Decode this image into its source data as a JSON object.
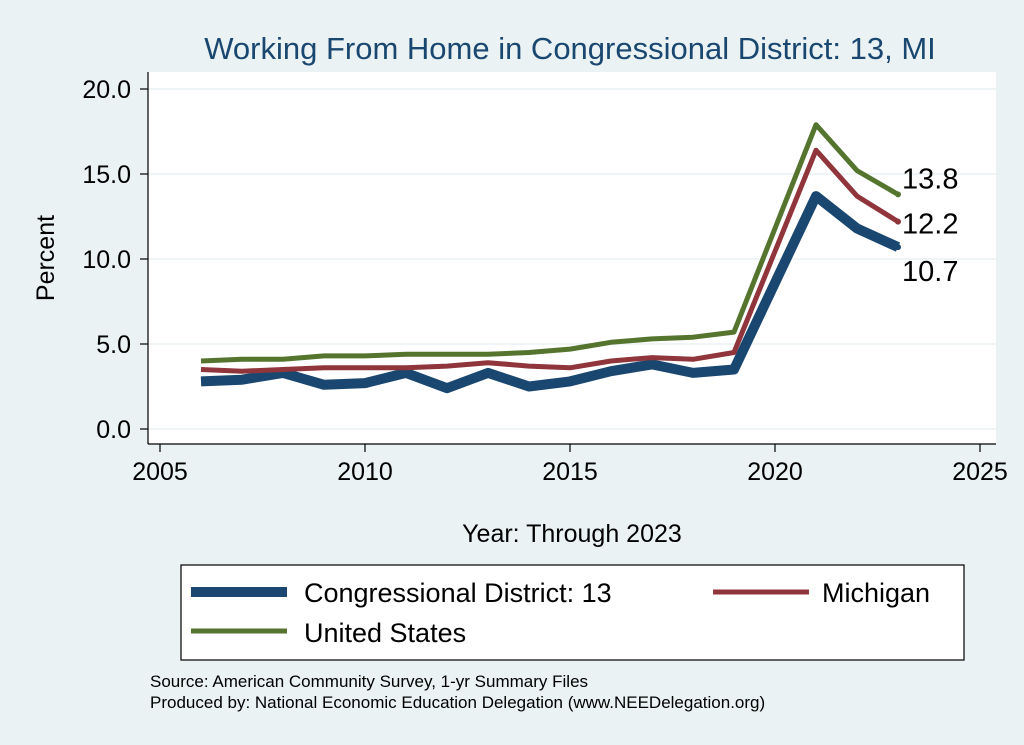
{
  "chart_data": {
    "type": "line",
    "title": "Working From Home in Congressional District: 13, MI",
    "xlabel": "Year: Through 2023",
    "ylabel": "Percent",
    "xlim": [
      2005,
      2025
    ],
    "ylim": [
      0,
      20
    ],
    "xticks": [
      "2005",
      "2010",
      "2015",
      "2020",
      "2025"
    ],
    "yticks": [
      "0.0",
      "5.0",
      "10.0",
      "15.0",
      "20.0"
    ],
    "x": [
      2006,
      2007,
      2008,
      2009,
      2010,
      2011,
      2012,
      2013,
      2014,
      2015,
      2016,
      2017,
      2018,
      2019,
      2021,
      2022,
      2023
    ],
    "series": [
      {
        "name": "Congressional District: 13",
        "color": "#1a476f",
        "values": [
          2.8,
          2.9,
          3.3,
          2.6,
          2.7,
          3.3,
          2.4,
          3.3,
          2.5,
          2.8,
          3.4,
          3.8,
          3.3,
          3.5,
          13.7,
          11.8,
          10.7
        ],
        "end_label": "10.7"
      },
      {
        "name": "Michigan",
        "color": "#90353b",
        "values": [
          3.5,
          3.4,
          3.5,
          3.6,
          3.6,
          3.6,
          3.7,
          3.9,
          3.7,
          3.6,
          4.0,
          4.2,
          4.1,
          4.5,
          16.4,
          13.7,
          12.2
        ],
        "end_label": "12.2"
      },
      {
        "name": "United States",
        "color": "#55752f",
        "values": [
          4.0,
          4.1,
          4.1,
          4.3,
          4.3,
          4.4,
          4.4,
          4.4,
          4.5,
          4.7,
          5.1,
          5.3,
          5.4,
          5.7,
          17.9,
          15.2,
          13.8
        ],
        "end_label": "13.8"
      }
    ],
    "grid": true,
    "legend": "bottom"
  },
  "notes": {
    "source": "Source: American Community Survey, 1-yr Summary Files",
    "produced": "Produced by: National Economic Education Delegation (www.NEEDelegation.org)"
  }
}
